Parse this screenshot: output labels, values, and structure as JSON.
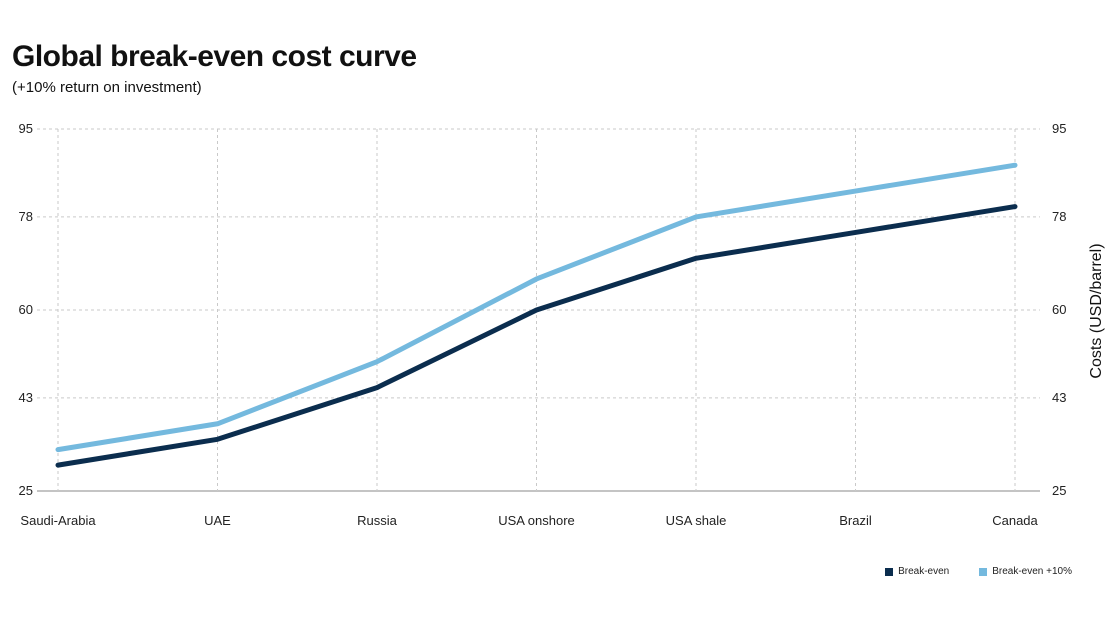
{
  "chart_data": {
    "type": "line",
    "title": "Global break-even cost curve",
    "subtitle": "(+10% return on investment)",
    "categories": [
      "Saudi-Arabia",
      "UAE",
      "Russia",
      "USA onshore",
      "USA shale",
      "Brazil",
      "Canada"
    ],
    "series": [
      {
        "name": "Break-even",
        "color": "#0b2d4e",
        "values": [
          30,
          35,
          45,
          60,
          70,
          75,
          80
        ]
      },
      {
        "name": "Break-even +10%",
        "color": "#74b9de",
        "values": [
          33,
          38,
          50,
          66,
          78,
          83,
          88
        ]
      }
    ],
    "ylabel": "Costs (USD/barrel)",
    "yticks": [
      25,
      43,
      60,
      78,
      95
    ],
    "ylim": [
      25,
      95
    ],
    "grid": true,
    "legend_position": "bottom-right"
  }
}
